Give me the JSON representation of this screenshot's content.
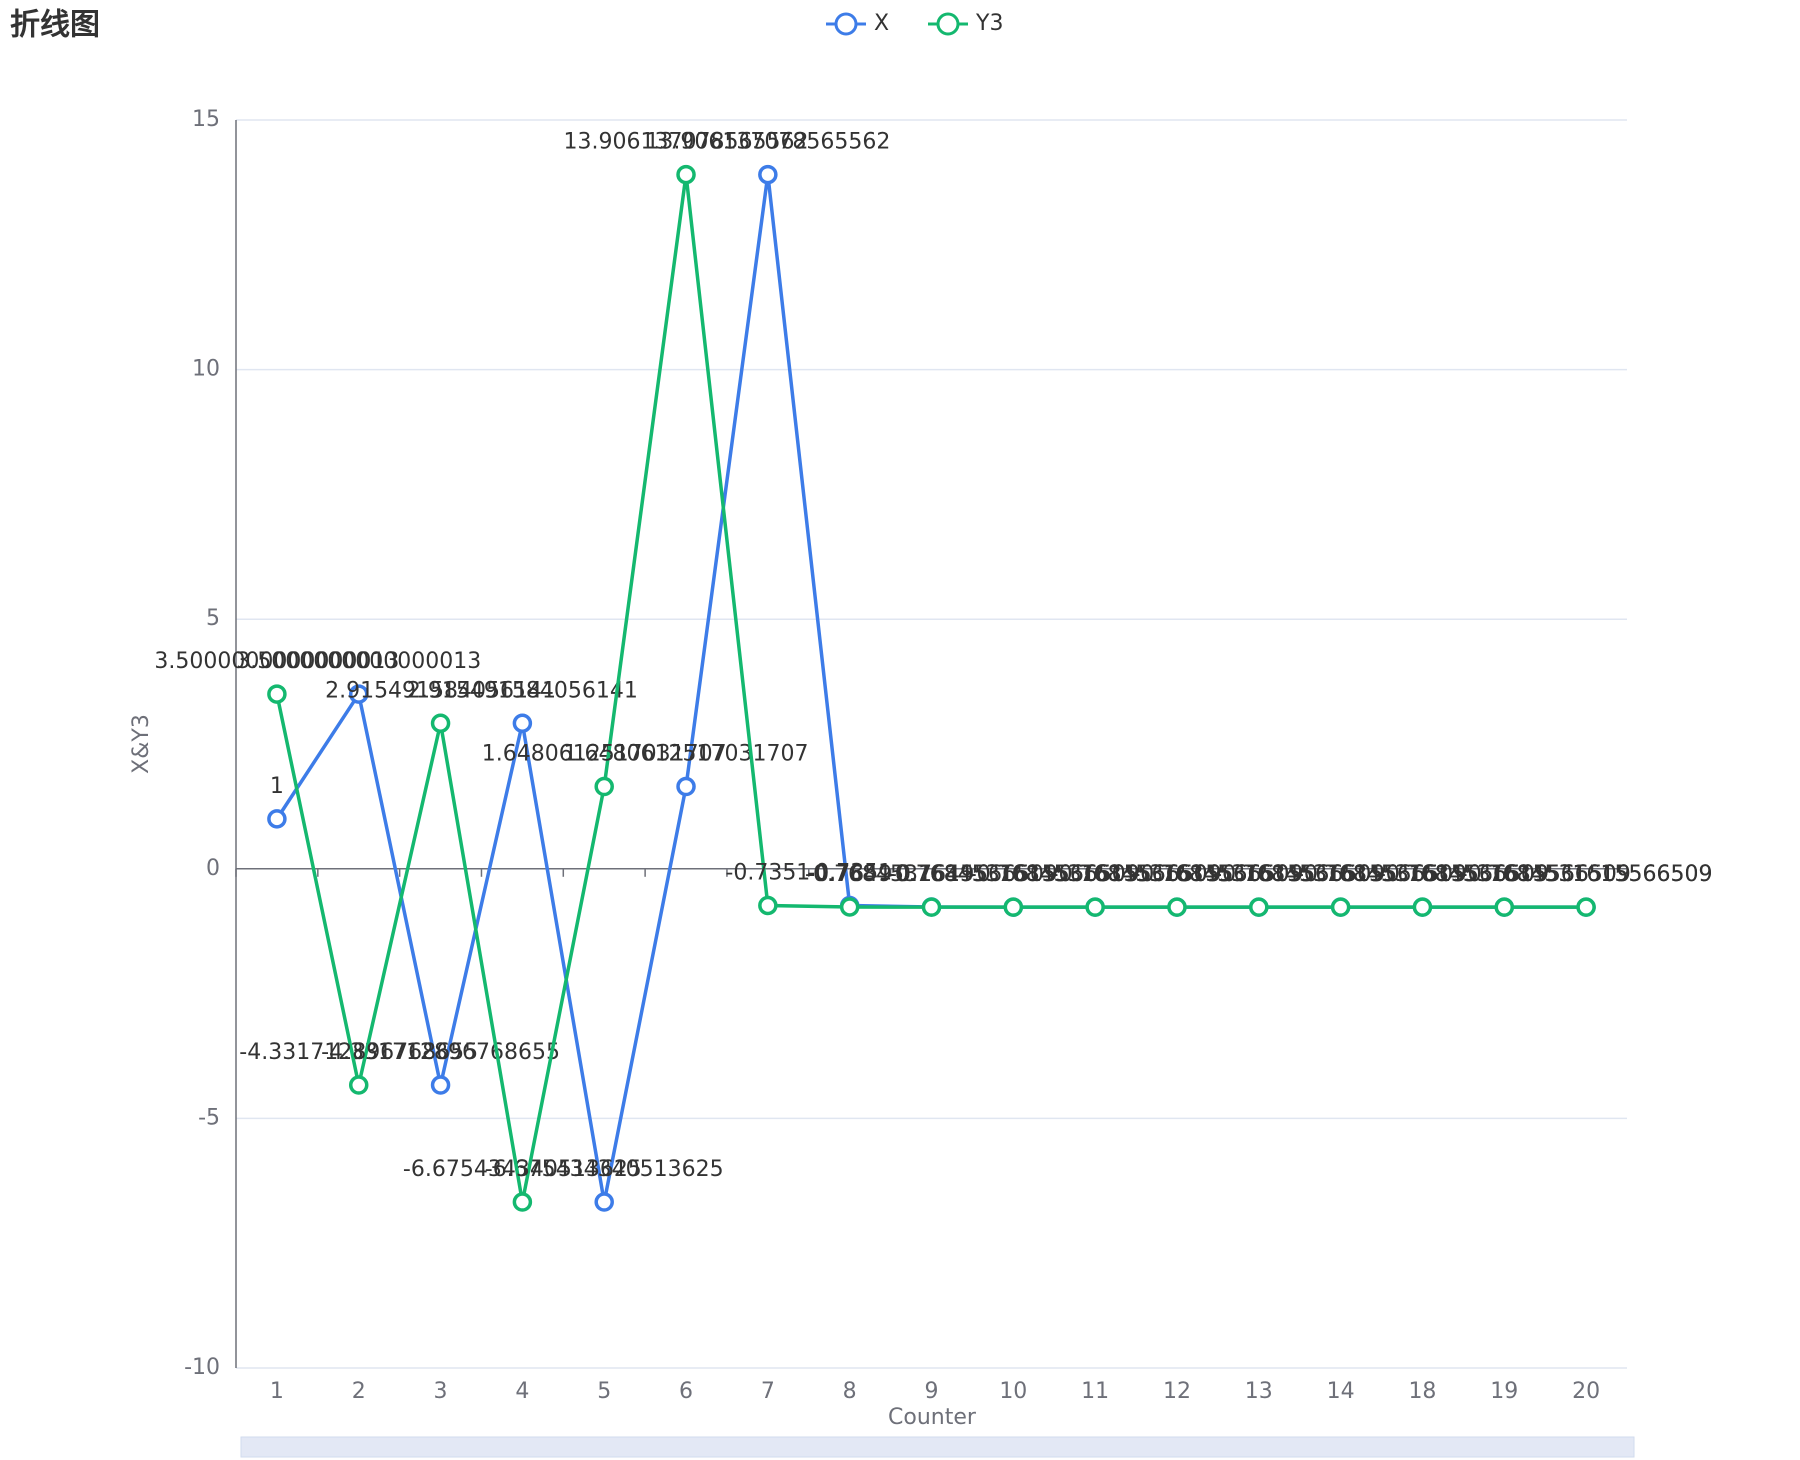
{
  "chart_data": {
    "type": "line",
    "title": "折线图",
    "x_label": "Counter",
    "y_label": "X&Y3",
    "categories": [
      "1",
      "2",
      "3",
      "4",
      "5",
      "6",
      "7",
      "8",
      "9",
      "10",
      "11",
      "12",
      "13",
      "14",
      "18",
      "19",
      "20"
    ],
    "series": [
      {
        "name": "X",
        "color": "#3d7ce8",
        "values": [
          1,
          3.5000000000000013,
          -4.331712896768655,
          2.915491584056141,
          -6.675434340513625,
          1.6480612517031707,
          13.906137078565562,
          -0.7351,
          -0.7649,
          -0.7684531615566509,
          -0.7684531615566509,
          -0.7684531615566509,
          -0.7684531615566509,
          -0.7684531615566509,
          -0.7684531615566509,
          -0.7684531615566509,
          -0.7684531615566509
        ]
      },
      {
        "name": "Y3",
        "color": "#14b86f",
        "values": [
          3.5000000000000013,
          -4.331712896768655,
          2.915491584056141,
          -6.675434340513625,
          1.6480612517031707,
          13.906137078565562,
          -0.7351,
          -0.7649,
          -0.7684531615566509,
          -0.7684531615566509,
          -0.7684531615566509,
          -0.7684531615566509,
          -0.7684531615566509,
          -0.7684531615566509,
          -0.7684531615566509,
          -0.7684531615566509,
          -0.7684531615566509
        ]
      }
    ],
    "ylim": [
      -10,
      15
    ],
    "yticks": [
      -10,
      -5,
      0,
      5,
      10,
      15
    ],
    "grid": true
  }
}
